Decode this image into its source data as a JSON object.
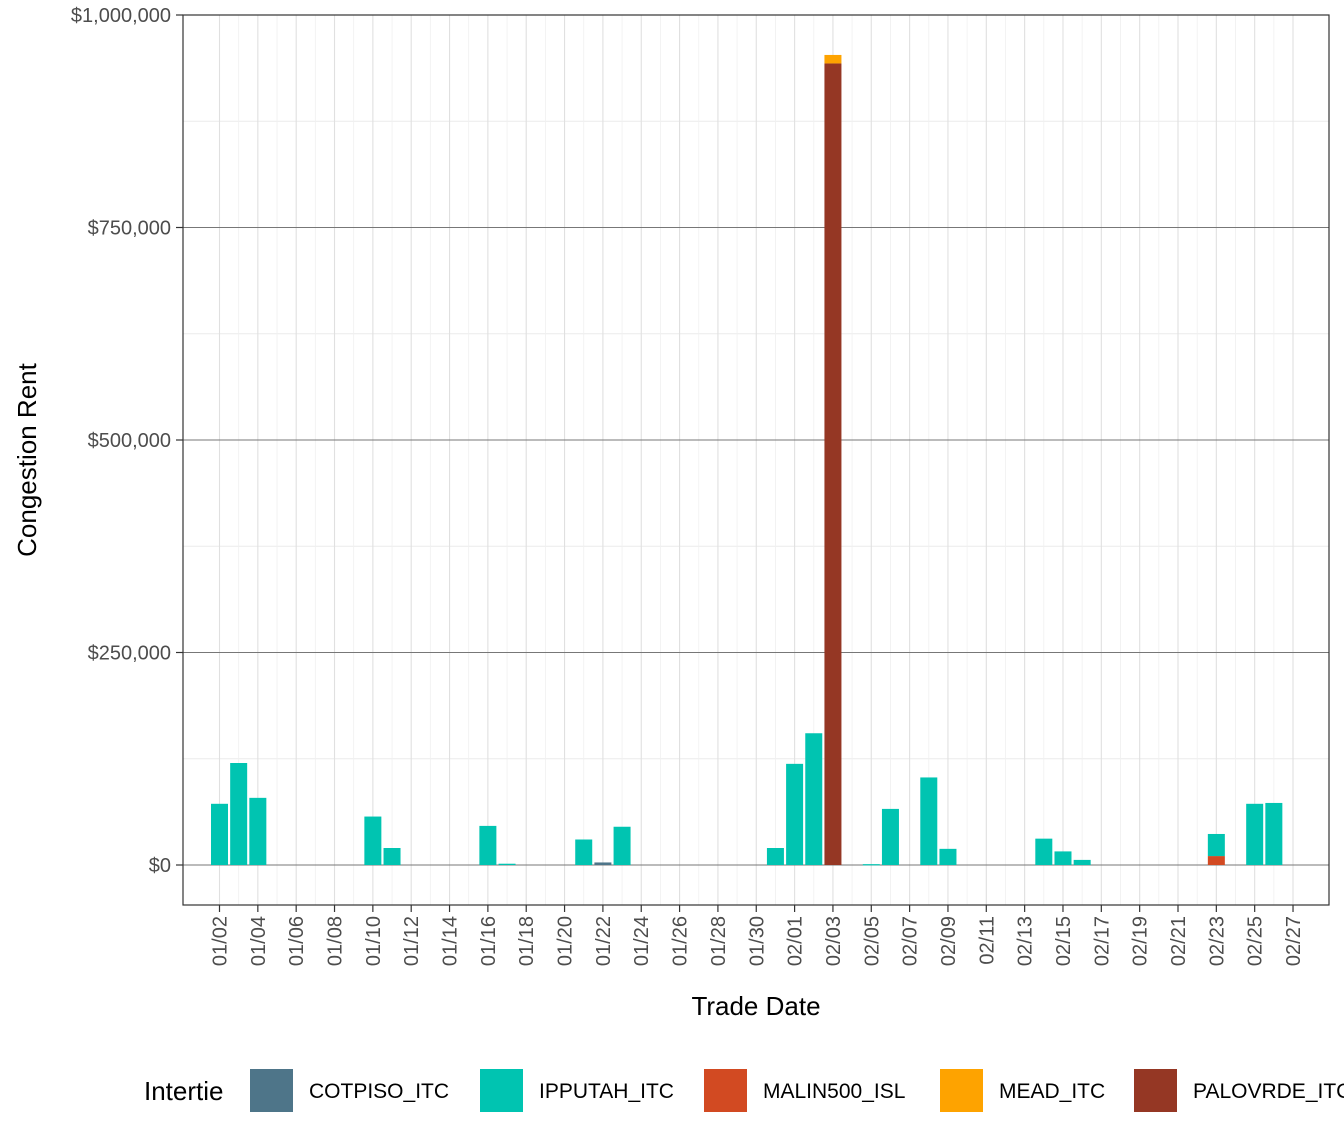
{
  "chart_data": {
    "type": "bar",
    "stacked": true,
    "xlabel": "Trade Date",
    "ylabel": "Congestion Rent",
    "ylim": [
      -85000,
      1000000
    ],
    "yticks": [
      {
        "value": 0,
        "label": "$0"
      },
      {
        "value": 250000,
        "label": "$250,000"
      },
      {
        "value": 500000,
        "label": "$500,000"
      },
      {
        "value": 750000,
        "label": "$750,000"
      },
      {
        "value": 1000000,
        "label": "$1,000,000"
      }
    ],
    "x_dates": [
      "01/02",
      "01/03",
      "01/04",
      "01/05",
      "01/06",
      "01/07",
      "01/08",
      "01/09",
      "01/10",
      "01/11",
      "01/12",
      "01/13",
      "01/14",
      "01/15",
      "01/16",
      "01/17",
      "01/18",
      "01/19",
      "01/20",
      "01/21",
      "01/22",
      "01/23",
      "01/24",
      "01/25",
      "01/26",
      "01/27",
      "01/28",
      "01/29",
      "01/30",
      "01/31",
      "02/01",
      "02/02",
      "02/03",
      "02/04",
      "02/05",
      "02/06",
      "02/07",
      "02/08",
      "02/09",
      "02/10",
      "02/11",
      "02/12",
      "02/13",
      "02/14",
      "02/15",
      "02/16",
      "02/17",
      "02/18",
      "02/19",
      "02/20",
      "02/21",
      "02/22",
      "02/23",
      "02/24",
      "02/25",
      "02/26",
      "02/27"
    ],
    "x_tick_labels": [
      "01/02",
      "01/04",
      "01/06",
      "01/08",
      "01/10",
      "01/12",
      "01/14",
      "01/16",
      "01/18",
      "01/20",
      "01/22",
      "01/24",
      "01/26",
      "01/28",
      "01/30",
      "02/01",
      "02/03",
      "02/05",
      "02/07",
      "02/09",
      "02/11",
      "02/13",
      "02/15",
      "02/17",
      "02/19",
      "02/21",
      "02/23",
      "02/25",
      "02/27"
    ],
    "series": [
      {
        "name": "COTPISO_ITC",
        "color": "#4e7589",
        "values": [
          0,
          0,
          0,
          0,
          0,
          0,
          0,
          0,
          0,
          0,
          0,
          0,
          0,
          0,
          0,
          0,
          0,
          0,
          0,
          0,
          3000,
          0,
          0,
          0,
          0,
          0,
          0,
          0,
          0,
          0,
          0,
          0,
          0,
          0,
          0,
          0,
          0,
          0,
          0,
          0,
          0,
          0,
          0,
          0,
          0,
          0,
          0,
          0,
          0,
          0,
          0,
          0,
          0,
          0,
          0,
          0,
          0
        ]
      },
      {
        "name": "IPPUTAH_ITC",
        "color": "#00c4b1",
        "values": [
          72000,
          120000,
          79000,
          0,
          0,
          0,
          0,
          0,
          57000,
          20000,
          0,
          0,
          0,
          0,
          46000,
          1500,
          0,
          0,
          0,
          30000,
          0,
          45000,
          0,
          0,
          0,
          0,
          0,
          0,
          0,
          20000,
          119000,
          155000,
          0,
          0,
          1000,
          66000,
          0,
          103000,
          19000,
          0,
          0,
          0,
          0,
          31000,
          16000,
          6000,
          0,
          0,
          0,
          0,
          0,
          0,
          26000,
          0,
          72000,
          73000,
          0
        ]
      },
      {
        "name": "MALIN500_ISL",
        "color": "#d24a22",
        "values": [
          0,
          0,
          0,
          0,
          0,
          0,
          0,
          0,
          0,
          0,
          0,
          0,
          0,
          0,
          0,
          0,
          0,
          0,
          0,
          0,
          0,
          0,
          0,
          0,
          0,
          0,
          0,
          0,
          0,
          0,
          0,
          0,
          0,
          0,
          0,
          0,
          0,
          0,
          0,
          0,
          0,
          0,
          0,
          0,
          0,
          0,
          0,
          0,
          0,
          0,
          0,
          0,
          10500,
          0,
          0,
          0,
          0
        ]
      },
      {
        "name": "MEAD_ITC",
        "color": "#fea300",
        "values": [
          0,
          0,
          0,
          0,
          0,
          0,
          0,
          0,
          0,
          0,
          0,
          0,
          0,
          0,
          0,
          0,
          0,
          0,
          0,
          0,
          0,
          0,
          0,
          0,
          0,
          0,
          0,
          0,
          0,
          0,
          0,
          0,
          0,
          0,
          0,
          0,
          0,
          0,
          0,
          0,
          0,
          0,
          0,
          0,
          0,
          0,
          0,
          0,
          0,
          0,
          0,
          0,
          0,
          0,
          0,
          0,
          0
        ]
      },
      {
        "name": "PALOVRDE_ITC",
        "color": "#953724",
        "values": [
          0,
          0,
          0,
          0,
          0,
          0,
          0,
          0,
          0,
          0,
          0,
          0,
          0,
          0,
          0,
          0,
          0,
          0,
          0,
          0,
          0,
          0,
          0,
          0,
          0,
          0,
          0,
          0,
          0,
          0,
          0,
          0,
          943000,
          0,
          0,
          0,
          0,
          0,
          0,
          0,
          0,
          0,
          0,
          0,
          0,
          0,
          0,
          0,
          0,
          0,
          0,
          0,
          0,
          0,
          0,
          0,
          0
        ]
      }
    ],
    "extra_stack": {
      "series": "MEAD_ITC",
      "date": "02/03",
      "value": 10000
    },
    "legend": {
      "title": "Intertie",
      "position": "bottom"
    },
    "grid": true
  }
}
